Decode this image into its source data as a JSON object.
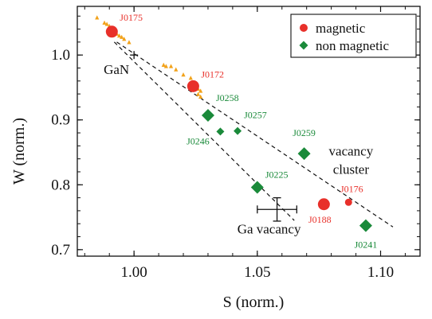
{
  "chart_data": {
    "type": "scatter",
    "xlabel": "S (norm.)",
    "ylabel": "W (norm.)",
    "xlim": [
      0.977,
      1.116
    ],
    "ylim": [
      0.69,
      1.075
    ],
    "xticks": [
      {
        "v": 1.0,
        "label": "1.00"
      },
      {
        "v": 1.05,
        "label": "1.05"
      },
      {
        "v": 1.1,
        "label": "1.10"
      }
    ],
    "yticks": [
      {
        "v": 0.7,
        "label": "0.7"
      },
      {
        "v": 0.8,
        "label": "0.8"
      },
      {
        "v": 0.9,
        "label": "0.9"
      },
      {
        "v": 1.0,
        "label": "1.0"
      }
    ],
    "legend": {
      "position": "top-right",
      "items": [
        {
          "label": "magnetic",
          "color": "#e8302a",
          "marker": "circle"
        },
        {
          "label": "non magnetic",
          "color": "#1a8a3a",
          "marker": "diamond"
        }
      ]
    },
    "series": [
      {
        "name": "magnetic",
        "color": "#e8302a",
        "marker": "circle",
        "points": [
          {
            "label": "J0175",
            "x": 0.991,
            "y": 1.036,
            "size": "large"
          },
          {
            "label": "J0172",
            "x": 1.024,
            "y": 0.952,
            "size": "large"
          },
          {
            "label": "J0188",
            "x": 1.077,
            "y": 0.77,
            "size": "large"
          },
          {
            "label": "J0176",
            "x": 1.087,
            "y": 0.773,
            "size": "small"
          }
        ]
      },
      {
        "name": "non magnetic",
        "color": "#1a8a3a",
        "marker": "diamond",
        "points": [
          {
            "label": "J0258",
            "x": 1.03,
            "y": 0.907,
            "size": "large"
          },
          {
            "label": "J0246",
            "x": 1.035,
            "y": 0.882,
            "size": "small"
          },
          {
            "label": "J0257",
            "x": 1.042,
            "y": 0.883,
            "size": "small"
          },
          {
            "label": "J0259",
            "x": 1.069,
            "y": 0.848,
            "size": "large"
          },
          {
            "label": "J0225",
            "x": 1.05,
            "y": 0.796,
            "size": "large"
          },
          {
            "label": "J0241",
            "x": 1.094,
            "y": 0.737,
            "size": "large"
          }
        ]
      },
      {
        "color": "#f2a21a",
        "marker": "triangle",
        "points": [
          {
            "x": 0.985,
            "y": 1.058
          },
          {
            "x": 0.988,
            "y": 1.05
          },
          {
            "x": 0.989,
            "y": 1.048
          },
          {
            "x": 0.99,
            "y": 1.045
          },
          {
            "x": 0.991,
            "y": 1.041
          },
          {
            "x": 0.992,
            "y": 1.038
          },
          {
            "x": 0.993,
            "y": 1.033
          },
          {
            "x": 0.994,
            "y": 1.03
          },
          {
            "x": 0.995,
            "y": 1.028
          },
          {
            "x": 0.996,
            "y": 1.025
          },
          {
            "x": 0.998,
            "y": 1.02
          },
          {
            "x": 1.012,
            "y": 0.985
          },
          {
            "x": 1.013,
            "y": 0.983
          },
          {
            "x": 1.015,
            "y": 0.983
          },
          {
            "x": 1.017,
            "y": 0.978
          },
          {
            "x": 1.02,
            "y": 0.97
          },
          {
            "x": 1.023,
            "y": 0.965
          },
          {
            "x": 1.024,
            "y": 0.958
          },
          {
            "x": 1.025,
            "y": 0.95
          },
          {
            "x": 1.026,
            "y": 0.948
          },
          {
            "x": 1.027,
            "y": 0.945
          },
          {
            "x": 1.026,
            "y": 0.94
          },
          {
            "x": 1.027,
            "y": 0.936
          }
        ]
      }
    ],
    "reference_points": [
      {
        "label": "GaN",
        "x": 1.0,
        "y": 1.0
      },
      {
        "label": "Ga vacancy",
        "x": 1.058,
        "y": 0.762,
        "xerr": 0.008,
        "yerr": 0.018
      }
    ],
    "trend_lines": [
      {
        "from": {
          "x": 0.992,
          "y": 1.02
        },
        "to": {
          "x": 1.065,
          "y": 0.745
        }
      },
      {
        "from": {
          "x": 0.993,
          "y": 1.02
        },
        "to": {
          "x": 1.105,
          "y": 0.735
        }
      }
    ],
    "annotations": [
      {
        "text": "vacancy",
        "x": 1.088,
        "y": 0.845
      },
      {
        "text": "cluster",
        "x": 1.088,
        "y": 0.817
      }
    ]
  }
}
